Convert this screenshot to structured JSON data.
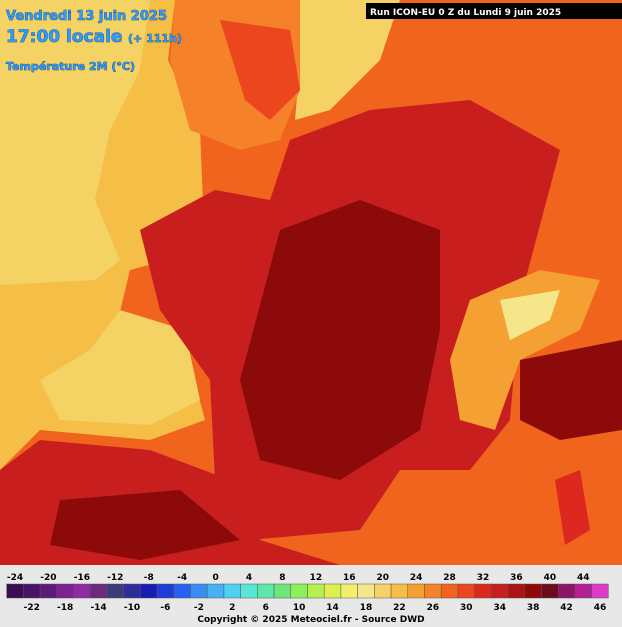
{
  "header": {
    "date": "Vendredi 13 juin 2025",
    "time": "17:00 locale",
    "lead": "(+ 111h)",
    "variable": "Température 2M (°C)",
    "run": "Run ICON-EU 0 Z du Lundi 9 juin 2025"
  },
  "legend": {
    "top_labels": [
      -24,
      -20,
      -16,
      -12,
      -8,
      -4,
      0,
      4,
      8,
      12,
      16,
      20,
      24,
      28,
      32,
      36,
      40,
      44
    ],
    "bottom_labels": [
      -22,
      -18,
      -14,
      -10,
      -6,
      -2,
      2,
      6,
      10,
      14,
      18,
      22,
      26,
      30,
      34,
      38,
      42,
      46
    ],
    "colors": [
      "#3a0f52",
      "#4a1466",
      "#5e1a7a",
      "#7a2290",
      "#9128a6",
      "#6a2a80",
      "#3d3a7a",
      "#2c2c9a",
      "#1a1ab4",
      "#1e3cd6",
      "#2860f0",
      "#3a8cf5",
      "#46b0f5",
      "#50d0f0",
      "#5ae6d6",
      "#60e6a8",
      "#6ee67a",
      "#8cf05a",
      "#b4f050",
      "#dcf050",
      "#f0f06e",
      "#f5e68c",
      "#f5d264",
      "#f5be46",
      "#f5a032",
      "#f58228",
      "#f0641e",
      "#eb461e",
      "#dc281e",
      "#c81e1e",
      "#aa1414",
      "#8c0a0a",
      "#6e0a1e",
      "#8c1464",
      "#b41e96",
      "#dc3cc8"
    ]
  },
  "footer": {
    "copyright": "Copyright © 2025 Meteociel.fr - Source DWD"
  }
}
